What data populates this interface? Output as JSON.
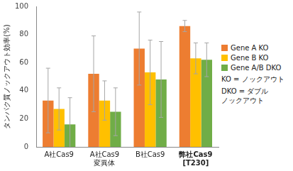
{
  "chart_data": {
    "type": "bar",
    "y_label": "タンパク質ノックアウト効率(%)",
    "categories": [
      "A社Cas9",
      "A社Cas9\n変異体",
      "B社Cas9",
      "弊社Cas9\n[T230]"
    ],
    "series": [
      {
        "name": "Gene A KO",
        "color": "#ed7d31",
        "values": [
          33,
          52,
          70,
          86
        ],
        "errors": [
          23,
          27,
          26,
          4
        ]
      },
      {
        "name": "Gene B KO",
        "color": "#ffc000",
        "values": [
          27,
          33,
          53,
          63
        ],
        "errors": [
          15,
          14,
          23,
          11
        ]
      },
      {
        "name": "Gene A/B DKO",
        "color": "#70ad47",
        "values": [
          16,
          25,
          48,
          62
        ],
        "errors": [
          19,
          17,
          27,
          12
        ]
      }
    ],
    "annotations": [
      "KO = ノックアウト",
      "DKO = ダブル\nノックアウト"
    ],
    "ylim": [
      0,
      100
    ],
    "yticks": [
      0,
      20,
      40,
      60,
      80,
      100
    ],
    "grid": false,
    "legend": "right"
  }
}
